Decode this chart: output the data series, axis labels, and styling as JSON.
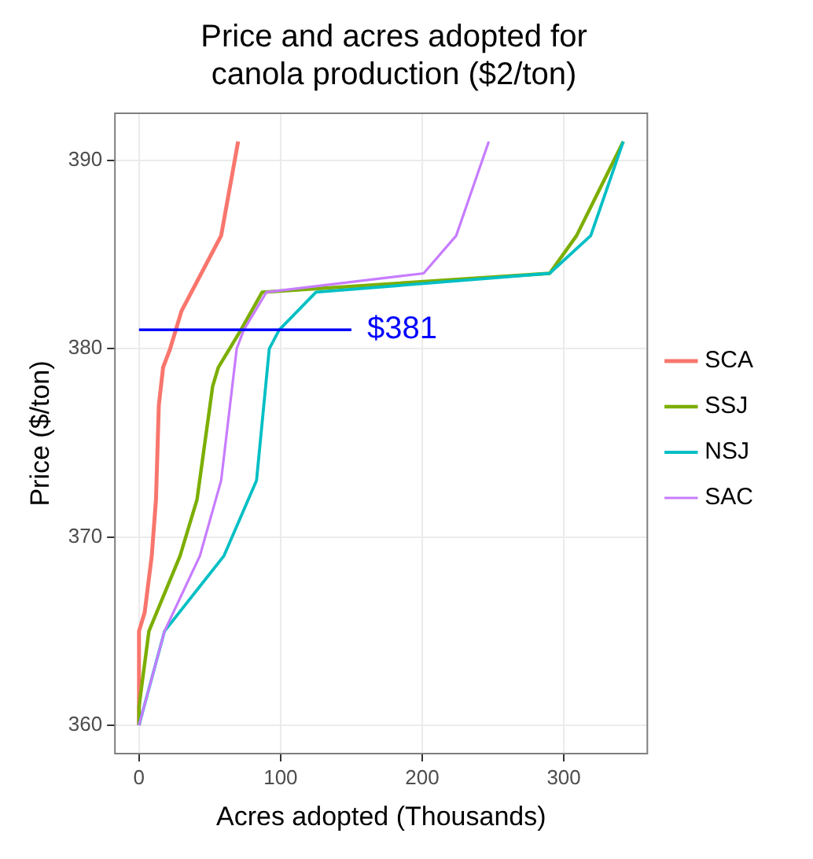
{
  "chart_data": {
    "type": "line",
    "title": "Price and acres adopted for canola production ($2/ton)",
    "xlabel": "Acres adopted (Thousands)",
    "ylabel": "Price ($/ton)",
    "series": [
      {
        "name": "SCA",
        "color": "#f8766d",
        "x": [
          0,
          0,
          4,
          9,
          12,
          14,
          17,
          22,
          30,
          58,
          70
        ],
        "values": [
          360,
          365,
          366,
          369,
          372,
          377,
          379,
          380,
          382,
          386,
          391
        ]
      },
      {
        "name": "SSJ",
        "color": "#7cae00",
        "x": [
          0,
          0,
          7,
          29,
          41,
          52,
          56,
          72,
          87,
          290,
          309,
          342
        ],
        "values": [
          360,
          361,
          365,
          369,
          372,
          378,
          379,
          381,
          383,
          384,
          386,
          391
        ]
      },
      {
        "name": "NSJ",
        "color": "#00bfc4",
        "x": [
          0,
          18,
          60,
          83,
          92,
          99,
          125,
          290,
          319,
          342
        ],
        "values": [
          360,
          365,
          369,
          373,
          380,
          381,
          383,
          384,
          386,
          391
        ]
      },
      {
        "name": "SAC",
        "color": "#c77cff",
        "x": [
          0,
          18,
          43,
          58,
          69,
          74,
          90,
          201,
          224,
          247
        ],
        "values": [
          360,
          365,
          369,
          373,
          380,
          381,
          383,
          384,
          386,
          391
        ]
      }
    ],
    "ref_lines": [
      {
        "axis": "y",
        "value": 381,
        "color": "#0000ff"
      }
    ],
    "annotations": [
      {
        "text": "$381",
        "x": 150,
        "y": 381
      }
    ],
    "xlim": [
      -17,
      359
    ],
    "ylim": [
      358.5,
      392.5
    ],
    "xticks": [
      0,
      100,
      200,
      300
    ],
    "yticks": [
      360,
      370,
      380,
      390
    ],
    "grid": true,
    "legend": "right",
    "marker": "none",
    "line_style": "solid"
  }
}
